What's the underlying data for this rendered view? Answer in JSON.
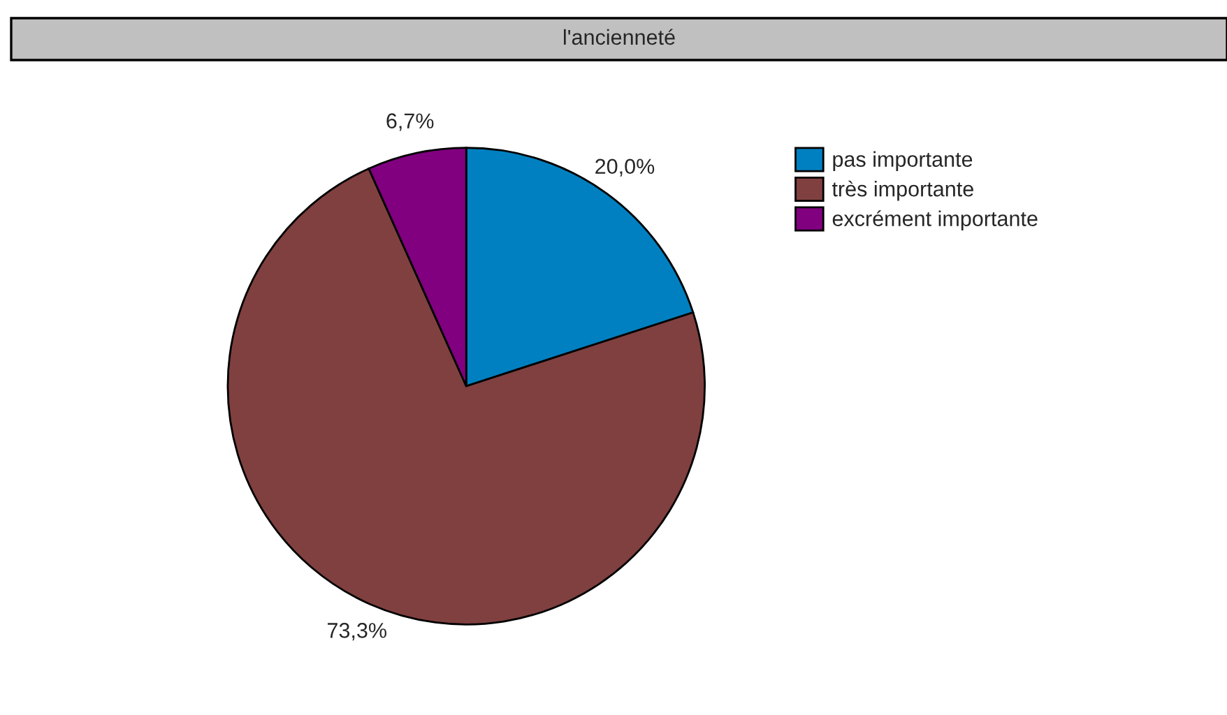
{
  "chart_data": {
    "type": "pie",
    "title": "l'ancienneté",
    "categories": [
      "pas importante",
      "très importante",
      "excrément importante"
    ],
    "values": [
      20.0,
      73.3,
      6.7
    ],
    "value_labels": [
      "20,0%",
      "73,3%",
      "6,7%"
    ],
    "colors": [
      "#0080c0",
      "#804040",
      "#800080"
    ],
    "legend": "top right"
  }
}
